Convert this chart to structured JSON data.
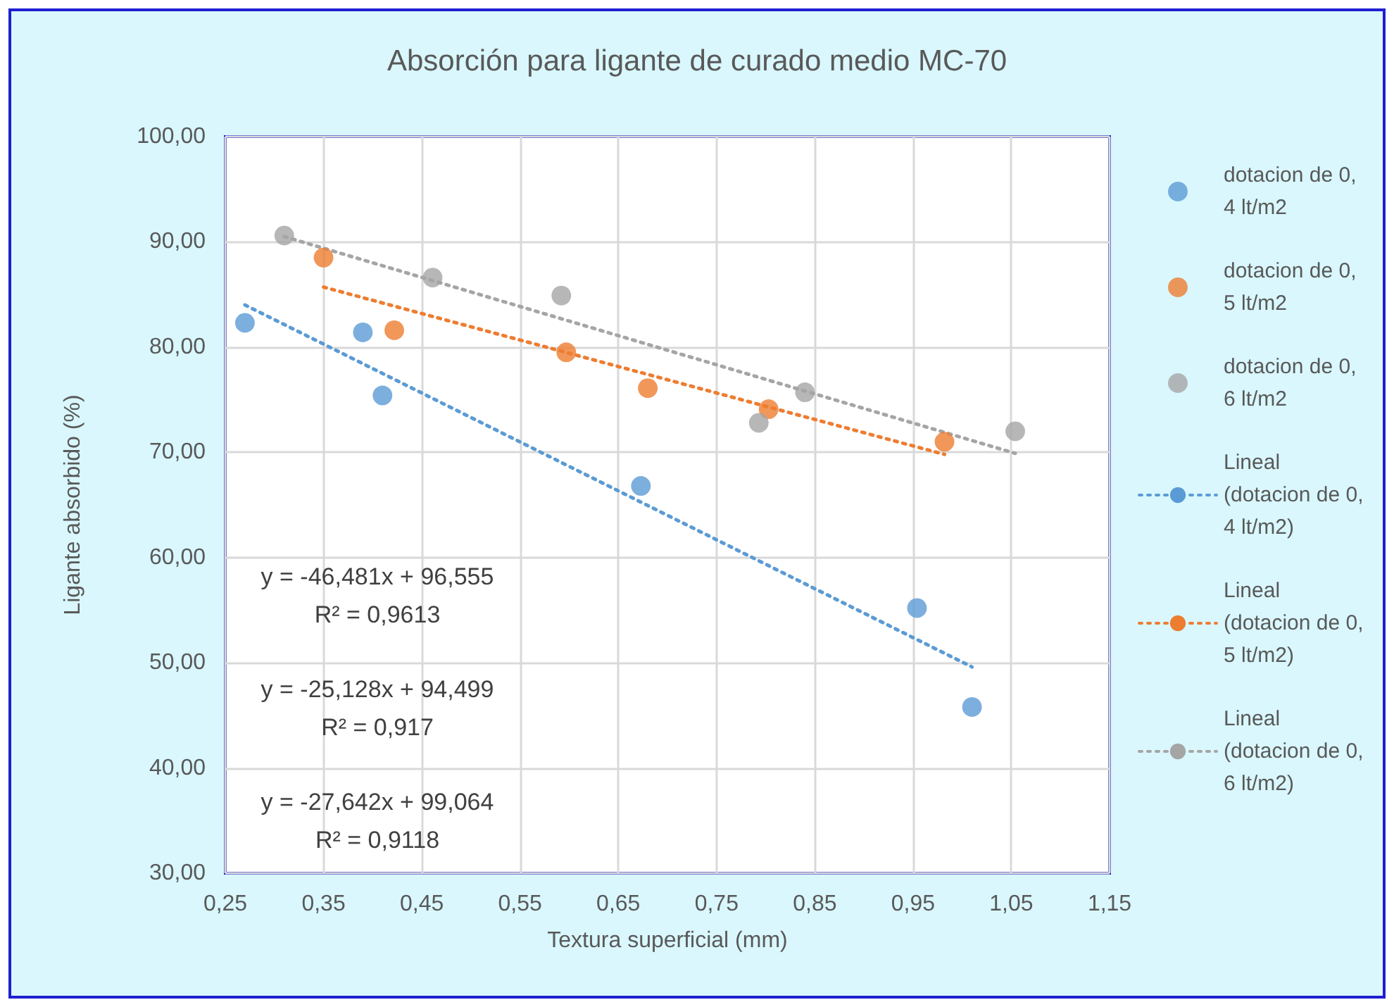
{
  "chart_data": {
    "type": "scatter",
    "title": "Absorción para ligante de curado medio MC-70",
    "xlabel": "Textura superficial (mm)",
    "ylabel": "Ligante absorbido (%)",
    "annotations": [
      "y = -46,481x + 96,555\nR² = 0,9613",
      "y = -25,128x + 94,499\nR² = 0,917",
      "y = -27,642x + 99,064\nR² = 0,9118"
    ],
    "series": [
      {
        "name": "dotacion de 0,4 lt/m2",
        "color": "#5b9bd5",
        "x": [
          0.27,
          0.39,
          0.41,
          0.673,
          0.954,
          1.01
        ],
        "values": [
          82.3,
          81.4,
          75.4,
          66.8,
          55.2,
          45.8
        ]
      },
      {
        "name": "dotacion de 0,5 lt/m2",
        "color": "#ed7d31",
        "x": [
          0.35,
          0.422,
          0.597,
          0.68,
          0.803,
          0.982
        ],
        "values": [
          88.5,
          81.6,
          79.5,
          76.1,
          74.1,
          71.0
        ]
      },
      {
        "name": "dotacion de 0,6 lt/m2",
        "color": "#a5a5a5",
        "x": [
          0.31,
          0.461,
          0.592,
          0.793,
          0.84,
          1.054
        ],
        "values": [
          90.6,
          86.6,
          84.9,
          72.8,
          75.7,
          72.0
        ]
      },
      {
        "name": "Lineal (dotacion de 0,4 lt/m2)",
        "type": "line",
        "line_style": "dotted",
        "marker": "none",
        "color": "#5b9bd5",
        "x": [
          0.27,
          1.01
        ],
        "values": [
          84.0,
          49.6
        ]
      },
      {
        "name": "Lineal (dotacion de 0,5 lt/m2)",
        "type": "line",
        "line_style": "dotted",
        "marker": "none",
        "color": "#ed7d31",
        "x": [
          0.35,
          0.982
        ],
        "values": [
          85.7,
          69.8
        ]
      },
      {
        "name": "Lineal (dotacion de 0,6 lt/m2)",
        "type": "line",
        "line_style": "dotted",
        "marker": "none",
        "color": "#a5a5a5",
        "x": [
          0.31,
          1.054
        ],
        "values": [
          90.5,
          69.9
        ]
      }
    ],
    "marker": "circle",
    "grid": true,
    "legend": "right",
    "xlim": [
      0.25,
      1.15
    ],
    "xticks": [
      {
        "value": 0.25,
        "label": "0,25"
      },
      {
        "value": 0.35,
        "label": "0,35"
      },
      {
        "value": 0.45,
        "label": "0,45"
      },
      {
        "value": 0.55,
        "label": "0,55"
      },
      {
        "value": 0.65,
        "label": "0,65"
      },
      {
        "value": 0.75,
        "label": "0,75"
      },
      {
        "value": 0.85,
        "label": "0,85"
      },
      {
        "value": 0.95,
        "label": "0,95"
      },
      {
        "value": 1.05,
        "label": "1,05"
      },
      {
        "value": 1.15,
        "label": "1,15"
      }
    ],
    "ylim": [
      30,
      100
    ],
    "yticks": [
      {
        "value": 30,
        "label": "30,00"
      },
      {
        "value": 40,
        "label": "40,00"
      },
      {
        "value": 50,
        "label": "50,00"
      },
      {
        "value": 60,
        "label": "60,00"
      },
      {
        "value": 70,
        "label": "70,00"
      },
      {
        "value": 80,
        "label": "80,00"
      },
      {
        "value": 90,
        "label": "90,00"
      },
      {
        "value": 100,
        "label": "100,00"
      }
    ]
  }
}
